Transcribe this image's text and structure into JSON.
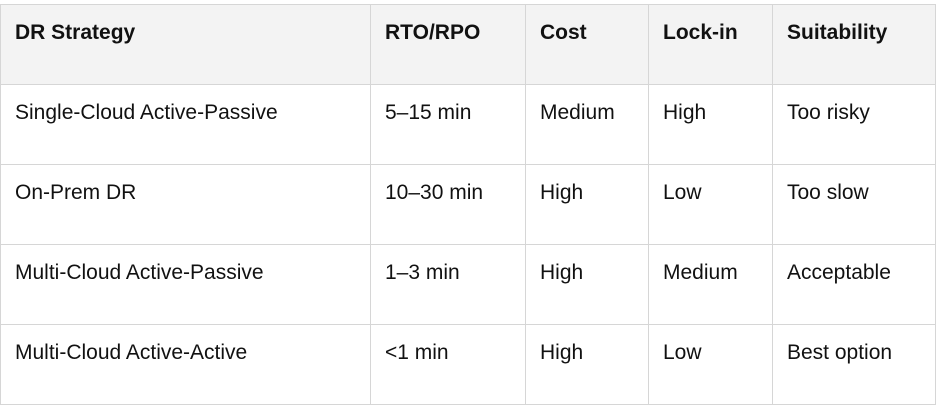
{
  "table": {
    "headers": [
      "DR Strategy",
      "RTO/RPO",
      "Cost",
      "Lock-in",
      "Suitability"
    ],
    "rows": [
      [
        "Single-Cloud Active-Passive",
        "5–15 min",
        "Medium",
        "High",
        "Too risky"
      ],
      [
        "On-Prem DR",
        "10–30 min",
        "High",
        "Low",
        "Too slow"
      ],
      [
        "Multi-Cloud Active-Passive",
        "1–3 min",
        "High",
        "Medium",
        "Acceptable"
      ],
      [
        "Multi-Cloud Active-Active",
        "<1 min",
        "High",
        "Low",
        "Best option"
      ]
    ]
  }
}
